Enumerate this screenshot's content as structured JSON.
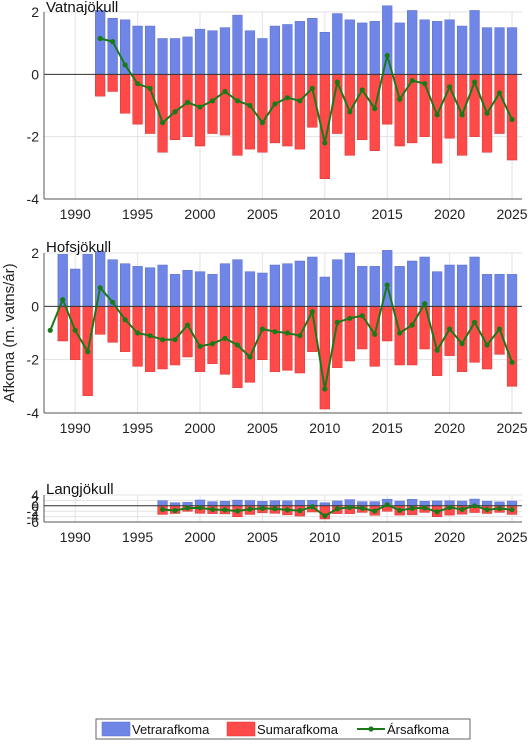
{
  "chart_data": {
    "type": "bar",
    "ylabel": "Afkoma (m. vatns/ár)",
    "colors": {
      "winter": "#6f86e6",
      "summer": "#ff4a4a",
      "annual": "#1a7a1a"
    },
    "legend": {
      "placement": "bottom-center",
      "items": [
        {
          "key": "winter",
          "label": "Vetrarafkoma"
        },
        {
          "key": "summer",
          "label": "Sumarafkoma"
        },
        {
          "key": "annual",
          "label": "Ársafkoma"
        }
      ]
    },
    "x_ticks": [
      1990,
      1995,
      2000,
      2005,
      2010,
      2015,
      2020,
      2025
    ],
    "xlim": [
      1987.5,
      2025.8
    ],
    "panels": [
      {
        "title": "Vatnajökull",
        "ylim": [
          -4,
          2
        ],
        "y_ticks": [
          -4,
          -2,
          0,
          2
        ],
        "years": [
          1992,
          1993,
          1994,
          1995,
          1996,
          1997,
          1998,
          1999,
          2000,
          2001,
          2002,
          2003,
          2004,
          2005,
          2006,
          2007,
          2008,
          2009,
          2010,
          2011,
          2012,
          2013,
          2014,
          2015,
          2016,
          2017,
          2018,
          2019,
          2020,
          2021,
          2022,
          2023,
          2024,
          2025
        ],
        "winter": [
          2.05,
          1.8,
          1.75,
          1.55,
          1.55,
          1.15,
          1.15,
          1.2,
          1.45,
          1.4,
          1.5,
          1.9,
          1.4,
          1.15,
          1.55,
          1.6,
          1.7,
          1.8,
          1.35,
          1.95,
          1.75,
          1.65,
          1.7,
          2.2,
          1.65,
          2.05,
          1.75,
          1.7,
          1.75,
          1.55,
          2.05,
          1.5,
          1.5,
          1.5
        ],
        "summer": [
          -0.7,
          -0.55,
          -1.25,
          -1.6,
          -1.9,
          -2.5,
          -2.1,
          -2.0,
          -2.3,
          -1.9,
          -1.95,
          -2.6,
          -2.4,
          -2.5,
          -2.2,
          -2.3,
          -2.4,
          -1.7,
          -3.35,
          -1.9,
          -2.6,
          -2.1,
          -2.45,
          -1.6,
          -2.3,
          -2.2,
          -2.0,
          -2.85,
          -2.05,
          -2.6,
          -2.0,
          -2.5,
          -1.9,
          -2.75
        ],
        "annual": [
          1.15,
          1.05,
          0.3,
          -0.3,
          -0.45,
          -1.55,
          -1.2,
          -0.9,
          -1.05,
          -0.85,
          -0.55,
          -0.85,
          -1.0,
          -1.55,
          -0.95,
          -0.75,
          -0.85,
          -0.45,
          -2.2,
          -0.25,
          -1.2,
          -0.5,
          -1.1,
          0.6,
          -0.8,
          -0.2,
          -0.3,
          -1.3,
          -0.4,
          -1.3,
          -0.25,
          -1.25,
          -0.6,
          -1.45
        ]
      },
      {
        "title": "Hofsjökull",
        "ylim": [
          -4,
          2
        ],
        "y_ticks": [
          -4,
          -2,
          0,
          2
        ],
        "years": [
          1988,
          1989,
          1990,
          1991,
          1992,
          1993,
          1994,
          1995,
          1996,
          1997,
          1998,
          1999,
          2000,
          2001,
          2002,
          2003,
          2004,
          2005,
          2006,
          2007,
          2008,
          2009,
          2010,
          2011,
          2012,
          2013,
          2014,
          2015,
          2016,
          2017,
          2018,
          2019,
          2020,
          2021,
          2022,
          2023,
          2024,
          2025
        ],
        "winter": [
          null,
          1.95,
          1.4,
          1.95,
          2.05,
          1.75,
          1.6,
          1.5,
          1.45,
          1.55,
          1.2,
          1.35,
          1.3,
          1.2,
          1.6,
          1.75,
          1.3,
          1.25,
          1.55,
          1.6,
          1.7,
          1.85,
          1.1,
          1.75,
          2.0,
          1.5,
          1.5,
          2.1,
          1.5,
          1.7,
          1.85,
          1.3,
          1.55,
          1.55,
          1.85,
          1.2,
          1.2,
          1.2
        ],
        "summer": [
          null,
          -1.3,
          -2.0,
          -3.35,
          -1.05,
          -1.35,
          -1.7,
          -2.25,
          -2.45,
          -2.35,
          -2.2,
          -1.9,
          -2.45,
          -2.15,
          -2.55,
          -3.05,
          -2.85,
          -2.0,
          -2.45,
          -2.4,
          -2.5,
          -1.7,
          -3.85,
          -2.3,
          -2.05,
          -1.6,
          -2.25,
          -1.3,
          -2.2,
          -2.2,
          -1.6,
          -2.6,
          -1.85,
          -2.45,
          -2.1,
          -2.35,
          -1.8,
          -3.0
        ],
        "annual": [
          -0.9,
          0.25,
          -0.9,
          -1.7,
          0.7,
          0.15,
          -0.5,
          -1.0,
          -1.1,
          -1.25,
          -1.25,
          -0.7,
          -1.5,
          -1.4,
          -1.2,
          -1.45,
          -1.9,
          -0.85,
          -0.95,
          -1.0,
          -1.1,
          -0.2,
          -3.1,
          -0.6,
          -0.45,
          -0.35,
          -1.05,
          0.8,
          -1.0,
          -0.7,
          0.1,
          -1.65,
          -0.85,
          -1.4,
          -0.6,
          -1.45,
          -0.85,
          -2.1
        ]
      },
      {
        "title": "Langjökull",
        "ylim": [
          -6,
          4
        ],
        "y_ticks": [
          -6,
          -4,
          -2,
          0,
          2,
          4
        ],
        "years": [
          1997,
          1998,
          1999,
          2000,
          2001,
          2002,
          2003,
          2004,
          2005,
          2006,
          2007,
          2008,
          2009,
          2010,
          2011,
          2012,
          2013,
          2014,
          2015,
          2016,
          2017,
          2018,
          2019,
          2020,
          2021,
          2022,
          2023,
          2024,
          2025
        ],
        "winter": [
          1.9,
          1.15,
          1.3,
          2.15,
          1.55,
          1.7,
          2.1,
          1.95,
          1.65,
          1.9,
          1.85,
          2.0,
          2.0,
          1.15,
          1.8,
          2.3,
          1.55,
          1.55,
          2.45,
          1.75,
          2.4,
          1.7,
          1.8,
          1.85,
          1.75,
          2.5,
          1.7,
          1.45,
          1.75
        ],
        "summer": [
          -3.2,
          -2.85,
          -2.05,
          -2.8,
          -2.9,
          -3.0,
          -4.05,
          -3.2,
          -2.6,
          -2.8,
          -3.35,
          -3.8,
          -2.3,
          -4.9,
          -2.9,
          -2.9,
          -2.45,
          -3.5,
          -2.05,
          -3.45,
          -3.35,
          -2.45,
          -4.05,
          -3.45,
          -3.1,
          -2.5,
          -2.85,
          -2.45,
          -3.2
        ],
        "annual": [
          -1.35,
          -1.75,
          -0.8,
          -0.75,
          -1.35,
          -1.5,
          -1.95,
          -1.25,
          -0.95,
          -1.1,
          -1.5,
          -1.8,
          -0.35,
          -3.75,
          -1.1,
          -0.6,
          -0.9,
          -1.95,
          0.4,
          -1.7,
          -0.95,
          -0.75,
          -2.25,
          -0.6,
          -1.35,
          0.0,
          -1.45,
          -1.0,
          -1.45
        ]
      }
    ]
  }
}
